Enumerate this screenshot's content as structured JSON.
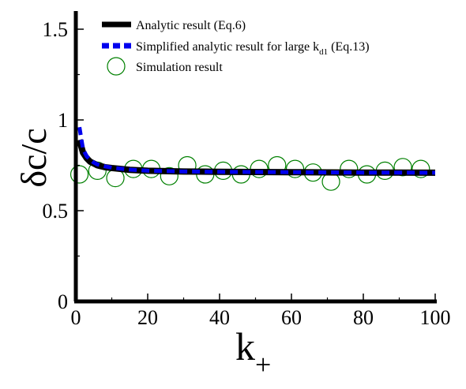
{
  "chart_data": {
    "type": "line",
    "xlabel": "k",
    "xlabel_sub": "+",
    "ylabel": "δc/c",
    "xlim": [
      0,
      100
    ],
    "ylim": [
      0,
      1.6
    ],
    "x_ticks": [
      "0",
      "20",
      "40",
      "60",
      "80",
      "100"
    ],
    "y_ticks": [
      "0",
      "0.5",
      "1",
      "1.5"
    ],
    "legend_position": "top",
    "grid": false,
    "legend": {
      "analytic": "Analytic result (Eq.6)",
      "simplified_main": "Simplified analytic result for large k",
      "simplified_sub": "d1",
      "simplified_tail": " (Eq.13)",
      "simulation": "Simulation result"
    },
    "series": [
      {
        "name": "Analytic result (Eq.6)",
        "style": "solid",
        "color": "#000000",
        "x": [
          1,
          2,
          3,
          4,
          5,
          6,
          8,
          10,
          15,
          20,
          30,
          40,
          50,
          60,
          70,
          80,
          90,
          100
        ],
        "y": [
          0.89,
          0.82,
          0.79,
          0.77,
          0.76,
          0.75,
          0.74,
          0.735,
          0.725,
          0.72,
          0.716,
          0.714,
          0.713,
          0.712,
          0.711,
          0.71,
          0.71,
          0.709
        ]
      },
      {
        "name": "Simplified analytic result for large kd1 (Eq.13)",
        "style": "dashed",
        "color": "#0000ee",
        "x": [
          1,
          2,
          3,
          4,
          5,
          6,
          8,
          10,
          15,
          20,
          30,
          40,
          50,
          60,
          70,
          80,
          90,
          100
        ],
        "y": [
          0.96,
          0.84,
          0.8,
          0.78,
          0.765,
          0.755,
          0.745,
          0.737,
          0.726,
          0.72,
          0.716,
          0.714,
          0.713,
          0.712,
          0.711,
          0.71,
          0.71,
          0.709
        ]
      },
      {
        "name": "Simulation result",
        "style": "open-circle",
        "color": "#008000",
        "x": [
          1,
          6,
          11,
          16,
          21,
          26,
          31,
          36,
          41,
          46,
          51,
          56,
          61,
          66,
          71,
          76,
          81,
          86,
          91,
          96
        ],
        "y": [
          0.7,
          0.72,
          0.68,
          0.73,
          0.73,
          0.69,
          0.75,
          0.7,
          0.72,
          0.7,
          0.73,
          0.75,
          0.73,
          0.71,
          0.66,
          0.73,
          0.7,
          0.72,
          0.74,
          0.73
        ]
      }
    ],
    "colors": {
      "axis": "#000000",
      "analytic": "#000000",
      "simplified": "#0000ee",
      "simulation": "#008000"
    }
  }
}
